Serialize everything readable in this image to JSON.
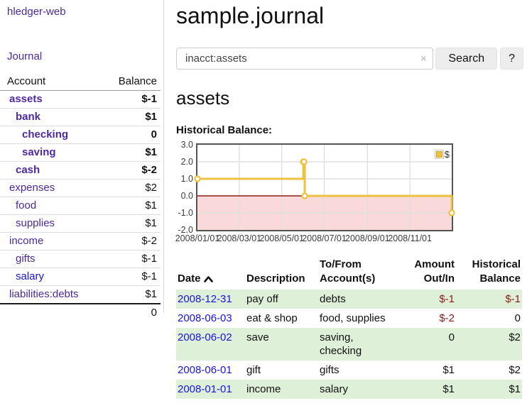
{
  "theme": {
    "link_purple": "#4c2a9e",
    "link_blue": "#1a13e0",
    "negative_strong": "#8b1a1a",
    "negative_soft": "#c5817e",
    "row_green": "#dff0d8",
    "series_gold": "#edc240"
  },
  "brand": "hledger-web",
  "sidebar": {
    "nav_journal": "Journal",
    "accounts_table": {
      "col_account": "Account",
      "col_balance": "Balance",
      "rows": [
        {
          "label": "assets",
          "level": 1,
          "bold": true,
          "balance": "$-1",
          "neg": "strong",
          "link": "purple"
        },
        {
          "label": "bank",
          "level": 2,
          "bold": true,
          "balance": "$1",
          "neg": null,
          "link": "purple"
        },
        {
          "label": "checking",
          "level": 3,
          "bold": true,
          "balance": "0",
          "neg": null,
          "link": "purple"
        },
        {
          "label": "saving",
          "level": 3,
          "bold": true,
          "balance": "$1",
          "neg": null,
          "link": "purple"
        },
        {
          "label": "cash",
          "level": 2,
          "bold": true,
          "balance": "$-2",
          "neg": "strong",
          "link": "purple"
        },
        {
          "label": "expenses",
          "level": 1,
          "bold": false,
          "balance": "$2",
          "neg": null,
          "link": "purple"
        },
        {
          "label": "food",
          "level": 2,
          "bold": false,
          "balance": "$1",
          "neg": null,
          "link": "purple"
        },
        {
          "label": "supplies",
          "level": 2,
          "bold": false,
          "balance": "$1",
          "neg": null,
          "link": "purple"
        },
        {
          "label": "income",
          "level": 1,
          "bold": false,
          "balance": "$-2",
          "neg": "soft",
          "link": "purple"
        },
        {
          "label": "gifts",
          "level": 2,
          "bold": false,
          "balance": "$-1",
          "neg": "soft",
          "link": "purple"
        },
        {
          "label": "salary",
          "level": 2,
          "bold": false,
          "balance": "$-1",
          "neg": "soft",
          "link": "blue"
        },
        {
          "label": "liabilities:debts",
          "level": 1,
          "bold": false,
          "balance": "$1",
          "neg": null,
          "link": "purple"
        }
      ],
      "total": "0"
    }
  },
  "main": {
    "title": "sample.journal",
    "search": {
      "value": "inacct:assets",
      "clear_icon": "×",
      "search_button": "Search",
      "help_button": "?"
    },
    "account_heading": "assets",
    "chart_title": "Historical Balance:"
  },
  "chart_data": {
    "type": "line",
    "line_style": "step-after",
    "title": "Historical Balance",
    "x_range": [
      "2008-01-01",
      "2008-12-31"
    ],
    "ylim": [
      -2.0,
      3.0
    ],
    "y_ticks": [
      "3.0",
      "2.0",
      "1.0",
      "0.0",
      "-1.0",
      "-2.0"
    ],
    "x_ticks": [
      "2008/01/01",
      "2008/03/01",
      "2008/05/01",
      "2008/07/01",
      "2008/09/01",
      "2008/11/01"
    ],
    "grid": true,
    "legend_position": "top-right",
    "series": [
      {
        "name": "$",
        "color": "#edc240",
        "points": [
          {
            "x": "2008-01-01",
            "y": 1
          },
          {
            "x": "2008-06-01",
            "y": 2
          },
          {
            "x": "2008-06-02",
            "y": 2
          },
          {
            "x": "2008-06-03",
            "y": 0
          },
          {
            "x": "2008-12-31",
            "y": -1
          }
        ]
      }
    ],
    "negative_region": {
      "below": 0,
      "color": "#f9d9d9"
    },
    "zero_line_color": "#8b1a1a",
    "grid_color": "#e0e0e0"
  },
  "register": {
    "headers": {
      "date": "Date",
      "description": "Description",
      "accounts_line1": "To/From",
      "accounts_line2": "Account(s)",
      "amount_line1": "Amount",
      "amount_line2": "Out/In",
      "balance_line1": "Historical",
      "balance_line2": "Balance"
    },
    "sort_icon": "chevron-up",
    "rows": [
      {
        "date": "2008-12-31",
        "description": "pay off",
        "accounts": "debts",
        "amount": "$-1",
        "balance": "$-1"
      },
      {
        "date": "2008-06-03",
        "description": "eat & shop",
        "accounts": "food, supplies",
        "amount": "$-2",
        "balance": "0"
      },
      {
        "date": "2008-06-02",
        "description": "save",
        "accounts": "saving, checking",
        "amount": "0",
        "balance": "$2"
      },
      {
        "date": "2008-06-01",
        "description": "gift",
        "accounts": "gifts",
        "amount": "$1",
        "balance": "$2"
      },
      {
        "date": "2008-01-01",
        "description": "income",
        "accounts": "salary",
        "amount": "$1",
        "balance": "$1"
      }
    ]
  }
}
